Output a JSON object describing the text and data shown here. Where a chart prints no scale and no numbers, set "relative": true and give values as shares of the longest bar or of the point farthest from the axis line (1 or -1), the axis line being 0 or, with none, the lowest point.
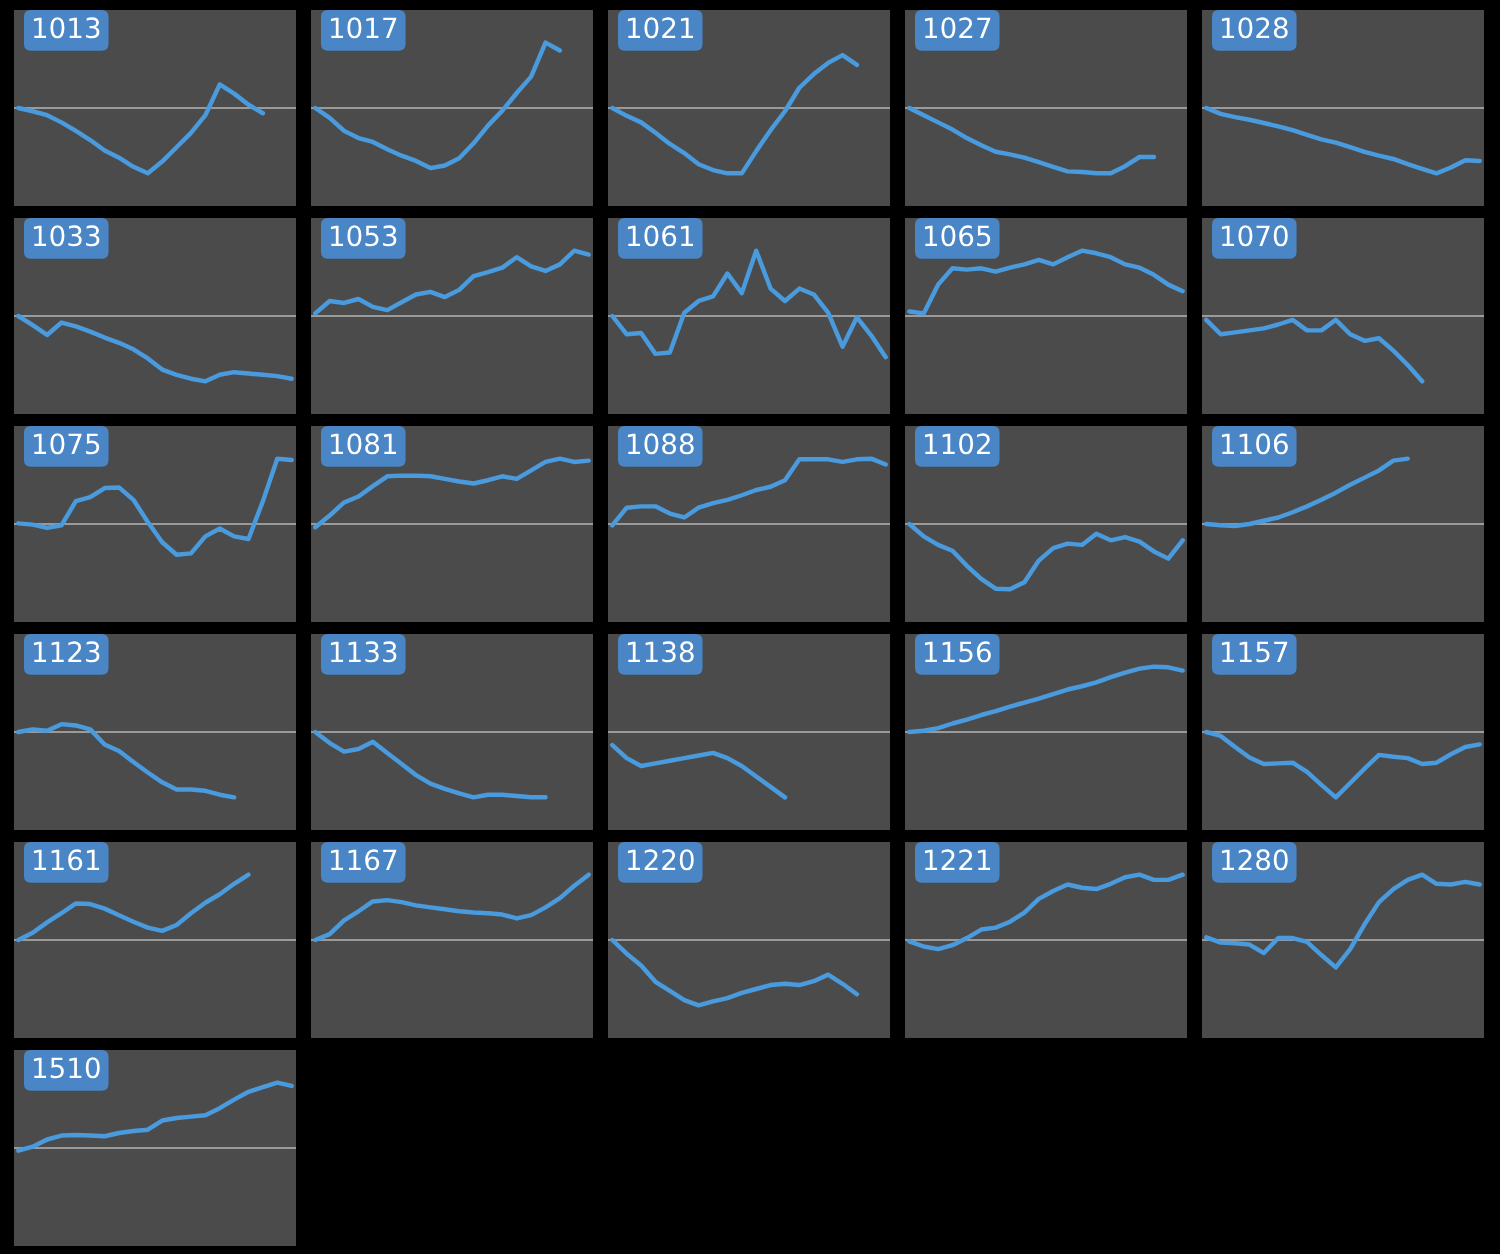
{
  "chart_data": [
    {
      "type": "line",
      "title": "1013",
      "relative": true,
      "color": "#4a9ade",
      "categories": [
        null,
        null,
        null,
        null,
        null,
        null,
        null,
        null,
        null,
        null,
        null,
        null,
        null,
        null,
        null,
        null,
        null,
        null,
        null,
        null
      ],
      "values": [
        0,
        -0.05,
        -0.11,
        -0.22,
        -0.35,
        -0.49,
        -0.65,
        -0.76,
        -0.9,
        -1,
        -0.82,
        -0.6,
        -0.38,
        -0.11,
        0.36,
        0.22,
        0.05,
        -0.08,
        null,
        null
      ]
    },
    {
      "type": "line",
      "title": "1017",
      "relative": true,
      "color": "#4a9ade",
      "categories": [
        null,
        null,
        null,
        null,
        null,
        null,
        null,
        null,
        null,
        null,
        null,
        null,
        null,
        null,
        null,
        null,
        null,
        null,
        null,
        null
      ],
      "values": [
        0,
        -0.15,
        -0.35,
        -0.46,
        -0.52,
        -0.63,
        -0.73,
        -0.81,
        -0.92,
        -0.88,
        -0.77,
        -0.54,
        -0.27,
        -0.04,
        0.23,
        0.48,
        1,
        0.88,
        null,
        null
      ]
    },
    {
      "type": "line",
      "title": "1021",
      "relative": true,
      "color": "#4a9ade",
      "categories": [
        null,
        null,
        null,
        null,
        null,
        null,
        null,
        null,
        null,
        null,
        null,
        null,
        null,
        null,
        null,
        null,
        null,
        null,
        null,
        null
      ],
      "values": [
        0,
        -0.12,
        -0.22,
        -0.38,
        -0.55,
        -0.69,
        -0.86,
        -0.95,
        -1,
        -1,
        -0.66,
        -0.34,
        -0.05,
        0.31,
        0.52,
        0.69,
        0.81,
        0.66,
        null,
        null
      ]
    },
    {
      "type": "line",
      "title": "1027",
      "relative": true,
      "color": "#4a9ade",
      "categories": [
        null,
        null,
        null,
        null,
        null,
        null,
        null,
        null,
        null,
        null,
        null,
        null,
        null,
        null,
        null,
        null,
        null,
        null,
        null,
        null
      ],
      "values": [
        0,
        -0.11,
        -0.22,
        -0.33,
        -0.46,
        -0.57,
        -0.67,
        -0.71,
        -0.76,
        -0.83,
        -0.9,
        -0.97,
        -0.98,
        -1,
        -1,
        -0.89,
        -0.75,
        -0.75,
        null,
        null
      ]
    },
    {
      "type": "line",
      "title": "1028",
      "relative": true,
      "color": "#4a9ade",
      "categories": [
        null,
        null,
        null,
        null,
        null,
        null,
        null,
        null,
        null,
        null,
        null,
        null,
        null,
        null,
        null,
        null,
        null,
        null,
        null,
        null
      ],
      "values": [
        0,
        -0.09,
        -0.14,
        -0.18,
        -0.23,
        -0.28,
        -0.34,
        -0.41,
        -0.48,
        -0.53,
        -0.6,
        -0.67,
        -0.73,
        -0.78,
        -0.86,
        -0.93,
        -1,
        -0.91,
        -0.8,
        -0.81
      ]
    },
    {
      "type": "line",
      "title": "1033",
      "relative": true,
      "color": "#4a9ade",
      "categories": [
        null,
        null,
        null,
        null,
        null,
        null,
        null,
        null,
        null,
        null,
        null,
        null,
        null,
        null,
        null,
        null,
        null,
        null,
        null,
        null
      ],
      "values": [
        0,
        -0.14,
        -0.29,
        -0.1,
        -0.16,
        -0.24,
        -0.33,
        -0.41,
        -0.51,
        -0.65,
        -0.82,
        -0.9,
        -0.96,
        -1,
        -0.9,
        -0.86,
        -0.88,
        -0.9,
        -0.92,
        -0.96
      ]
    },
    {
      "type": "line",
      "title": "1053",
      "relative": true,
      "color": "#4a9ade",
      "categories": [
        null,
        null,
        null,
        null,
        null,
        null,
        null,
        null,
        null,
        null,
        null,
        null,
        null,
        null,
        null,
        null,
        null,
        null,
        null,
        null
      ],
      "values": [
        0.04,
        0.23,
        0.2,
        0.26,
        0.14,
        0.09,
        0.21,
        0.33,
        0.37,
        0.29,
        0.4,
        0.61,
        0.67,
        0.74,
        0.9,
        0.76,
        0.69,
        0.79,
        1,
        0.94
      ]
    },
    {
      "type": "line",
      "title": "1061",
      "relative": true,
      "color": "#4a9ade",
      "categories": [
        null,
        null,
        null,
        null,
        null,
        null,
        null,
        null,
        null,
        null,
        null,
        null,
        null,
        null,
        null,
        null,
        null,
        null,
        null,
        null
      ],
      "values": [
        0,
        -0.28,
        -0.26,
        -0.58,
        -0.56,
        0.05,
        0.23,
        0.3,
        0.65,
        0.35,
        1,
        0.42,
        0.23,
        0.42,
        0.33,
        0.05,
        -0.47,
        -0.02,
        -0.3,
        -0.63
      ]
    },
    {
      "type": "line",
      "title": "1065",
      "relative": true,
      "color": "#4a9ade",
      "categories": [
        null,
        null,
        null,
        null,
        null,
        null,
        null,
        null,
        null,
        null,
        null,
        null,
        null,
        null,
        null,
        null,
        null,
        null,
        null,
        null
      ],
      "values": [
        0.07,
        0.04,
        0.48,
        0.73,
        0.71,
        0.73,
        0.68,
        0.74,
        0.79,
        0.86,
        0.79,
        0.9,
        1,
        0.96,
        0.9,
        0.79,
        0.74,
        0.63,
        0.48,
        0.38
      ]
    },
    {
      "type": "line",
      "title": "1070",
      "relative": true,
      "color": "#4a9ade",
      "categories": [
        null,
        null,
        null,
        null,
        null,
        null,
        null,
        null,
        null,
        null,
        null,
        null,
        null,
        null,
        null,
        null,
        null,
        null,
        null,
        null
      ],
      "values": [
        -0.06,
        -0.28,
        -0.25,
        -0.22,
        -0.19,
        -0.13,
        -0.06,
        -0.22,
        -0.22,
        -0.06,
        -0.28,
        -0.38,
        -0.34,
        -0.53,
        -0.75,
        -1,
        null,
        null,
        null,
        null
      ]
    },
    {
      "type": "line",
      "title": "1075",
      "relative": true,
      "color": "#4a9ade",
      "categories": [
        null,
        null,
        null,
        null,
        null,
        null,
        null,
        null,
        null,
        null,
        null,
        null,
        null,
        null,
        null,
        null,
        null,
        null,
        null,
        null
      ],
      "values": [
        0.01,
        -0.01,
        -0.06,
        -0.02,
        0.35,
        0.41,
        0.55,
        0.56,
        0.37,
        0.03,
        -0.28,
        -0.47,
        -0.45,
        -0.19,
        -0.07,
        -0.19,
        -0.23,
        0.35,
        1,
        0.98
      ]
    },
    {
      "type": "line",
      "title": "1081",
      "relative": true,
      "color": "#4a9ade",
      "categories": [
        null,
        null,
        null,
        null,
        null,
        null,
        null,
        null,
        null,
        null,
        null,
        null,
        null,
        null,
        null,
        null,
        null,
        null,
        null,
        null
      ],
      "values": [
        -0.05,
        0.13,
        0.33,
        0.42,
        0.58,
        0.73,
        0.74,
        0.74,
        0.73,
        0.69,
        0.65,
        0.62,
        0.67,
        0.73,
        0.69,
        0.82,
        0.95,
        1,
        0.95,
        0.97
      ]
    },
    {
      "type": "line",
      "title": "1088",
      "relative": true,
      "color": "#4a9ade",
      "categories": [
        null,
        null,
        null,
        null,
        null,
        null,
        null,
        null,
        null,
        null,
        null,
        null,
        null,
        null,
        null,
        null,
        null,
        null,
        null,
        null
      ],
      "values": [
        -0.02,
        0.25,
        0.27,
        0.27,
        0.16,
        0.1,
        0.25,
        0.32,
        0.37,
        0.44,
        0.52,
        0.57,
        0.67,
        0.99,
        0.99,
        0.99,
        0.95,
        0.99,
        1,
        0.91
      ]
    },
    {
      "type": "line",
      "title": "1102",
      "relative": true,
      "color": "#4a9ade",
      "categories": [
        null,
        null,
        null,
        null,
        null,
        null,
        null,
        null,
        null,
        null,
        null,
        null,
        null,
        null,
        null,
        null,
        null,
        null,
        null,
        null
      ],
      "values": [
        0,
        -0.19,
        -0.32,
        -0.41,
        -0.64,
        -0.84,
        -0.99,
        -1,
        -0.89,
        -0.56,
        -0.37,
        -0.3,
        -0.32,
        -0.15,
        -0.25,
        -0.2,
        -0.27,
        -0.42,
        -0.53,
        -0.25
      ]
    },
    {
      "type": "line",
      "title": "1106",
      "relative": true,
      "color": "#4a9ade",
      "categories": [
        null,
        null,
        null,
        null,
        null,
        null,
        null,
        null,
        null,
        null,
        null,
        null,
        null,
        null,
        null,
        null,
        null,
        null,
        null,
        null
      ],
      "values": [
        0,
        -0.02,
        -0.03,
        0,
        0.05,
        0.1,
        0.18,
        0.27,
        0.37,
        0.48,
        0.6,
        0.71,
        0.82,
        0.97,
        1,
        null,
        null,
        null,
        null,
        null
      ]
    },
    {
      "type": "line",
      "title": "1123",
      "relative": true,
      "color": "#4a9ade",
      "categories": [
        null,
        null,
        null,
        null,
        null,
        null,
        null,
        null,
        null,
        null,
        null,
        null,
        null,
        null,
        null,
        null,
        null,
        null,
        null,
        null
      ],
      "values": [
        0,
        0.04,
        0.02,
        0.12,
        0.1,
        0.04,
        -0.19,
        -0.29,
        -0.46,
        -0.62,
        -0.77,
        -0.88,
        -0.88,
        -0.9,
        -0.96,
        -1,
        null,
        null,
        null,
        null
      ]
    },
    {
      "type": "line",
      "title": "1133",
      "relative": true,
      "color": "#4a9ade",
      "categories": [
        null,
        null,
        null,
        null,
        null,
        null,
        null,
        null,
        null,
        null,
        null,
        null,
        null,
        null,
        null,
        null,
        null,
        null,
        null,
        null
      ],
      "values": [
        0,
        -0.17,
        -0.3,
        -0.26,
        -0.15,
        -0.32,
        -0.49,
        -0.66,
        -0.79,
        -0.87,
        -0.94,
        -1,
        -0.96,
        -0.96,
        -0.98,
        -1,
        -1,
        null,
        null,
        null
      ]
    },
    {
      "type": "line",
      "title": "1138",
      "relative": true,
      "color": "#4a9ade",
      "categories": [
        null,
        null,
        null,
        null,
        null,
        null,
        null,
        null,
        null,
        null,
        null,
        null,
        null,
        null,
        null,
        null,
        null,
        null,
        null,
        null
      ],
      "values": [
        -0.2,
        -0.4,
        -0.52,
        -0.48,
        -0.44,
        -0.4,
        -0.36,
        -0.32,
        -0.4,
        -0.52,
        -0.68,
        -0.84,
        -1,
        null,
        null,
        null,
        null,
        null,
        null,
        null
      ]
    },
    {
      "type": "line",
      "title": "1156",
      "relative": true,
      "color": "#4a9ade",
      "categories": [
        null,
        null,
        null,
        null,
        null,
        null,
        null,
        null,
        null,
        null,
        null,
        null,
        null,
        null,
        null,
        null,
        null,
        null,
        null,
        null
      ],
      "values": [
        0,
        0.02,
        0.06,
        0.13,
        0.19,
        0.26,
        0.32,
        0.39,
        0.45,
        0.51,
        0.58,
        0.65,
        0.7,
        0.76,
        0.84,
        0.91,
        0.97,
        1,
        0.99,
        0.94
      ]
    },
    {
      "type": "line",
      "title": "1157",
      "relative": true,
      "color": "#4a9ade",
      "categories": [
        null,
        null,
        null,
        null,
        null,
        null,
        null,
        null,
        null,
        null,
        null,
        null,
        null,
        null,
        null,
        null,
        null,
        null,
        null,
        null
      ],
      "values": [
        0,
        -0.06,
        -0.23,
        -0.39,
        -0.49,
        -0.48,
        -0.47,
        -0.61,
        -0.81,
        -1,
        -0.78,
        -0.56,
        -0.35,
        -0.38,
        -0.4,
        -0.49,
        -0.47,
        -0.34,
        -0.23,
        -0.19
      ]
    },
    {
      "type": "line",
      "title": "1161",
      "relative": true,
      "color": "#4a9ade",
      "categories": [
        null,
        null,
        null,
        null,
        null,
        null,
        null,
        null,
        null,
        null,
        null,
        null,
        null,
        null,
        null,
        null,
        null,
        null,
        null,
        null
      ],
      "values": [
        0,
        0.11,
        0.27,
        0.41,
        0.56,
        0.55,
        0.48,
        0.38,
        0.28,
        0.19,
        0.14,
        0.23,
        0.41,
        0.57,
        0.7,
        0.86,
        1,
        null,
        null,
        null
      ]
    },
    {
      "type": "line",
      "title": "1167",
      "relative": true,
      "color": "#4a9ade",
      "categories": [
        null,
        null,
        null,
        null,
        null,
        null,
        null,
        null,
        null,
        null,
        null,
        null,
        null,
        null,
        null,
        null,
        null,
        null,
        null,
        null
      ],
      "values": [
        0,
        0.09,
        0.3,
        0.44,
        0.59,
        0.61,
        0.58,
        0.53,
        0.5,
        0.47,
        0.44,
        0.42,
        0.41,
        0.39,
        0.33,
        0.38,
        0.5,
        0.64,
        0.83,
        1
      ]
    },
    {
      "type": "line",
      "title": "1220",
      "relative": true,
      "color": "#4a9ade",
      "categories": [
        null,
        null,
        null,
        null,
        null,
        null,
        null,
        null,
        null,
        null,
        null,
        null,
        null,
        null,
        null,
        null,
        null,
        null,
        null,
        null
      ],
      "values": [
        0,
        -0.21,
        -0.39,
        -0.64,
        -0.78,
        -0.92,
        -1,
        -0.94,
        -0.89,
        -0.81,
        -0.75,
        -0.69,
        -0.67,
        -0.69,
        -0.63,
        -0.53,
        -0.67,
        -0.83,
        null,
        null
      ]
    },
    {
      "type": "line",
      "title": "1221",
      "relative": true,
      "color": "#4a9ade",
      "categories": [
        null,
        null,
        null,
        null,
        null,
        null,
        null,
        null,
        null,
        null,
        null,
        null,
        null,
        null,
        null,
        null,
        null,
        null,
        null,
        null
      ],
      "values": [
        -0.02,
        -0.1,
        -0.14,
        -0.08,
        0.03,
        0.16,
        0.19,
        0.28,
        0.42,
        0.63,
        0.75,
        0.85,
        0.8,
        0.78,
        0.86,
        0.96,
        1,
        0.92,
        0.92,
        1
      ]
    },
    {
      "type": "line",
      "title": "1280",
      "relative": true,
      "color": "#4a9ade",
      "categories": [
        null,
        null,
        null,
        null,
        null,
        null,
        null,
        null,
        null,
        null,
        null,
        null,
        null,
        null,
        null,
        null,
        null,
        null,
        null,
        null
      ],
      "values": [
        0.04,
        -0.04,
        -0.05,
        -0.07,
        -0.2,
        0.03,
        0.03,
        -0.03,
        -0.23,
        -0.42,
        -0.14,
        0.24,
        0.58,
        0.78,
        0.92,
        1,
        0.86,
        0.85,
        0.89,
        0.85
      ]
    },
    {
      "type": "line",
      "title": "1510",
      "relative": true,
      "color": "#4a9ade",
      "categories": [
        null,
        null,
        null,
        null,
        null,
        null,
        null,
        null,
        null,
        null,
        null,
        null,
        null,
        null,
        null,
        null,
        null,
        null,
        null,
        null
      ],
      "values": [
        -0.04,
        0.02,
        0.13,
        0.19,
        0.2,
        0.19,
        0.18,
        0.23,
        0.26,
        0.28,
        0.42,
        0.46,
        0.48,
        0.5,
        0.61,
        0.74,
        0.86,
        0.93,
        1,
        0.95
      ]
    }
  ]
}
